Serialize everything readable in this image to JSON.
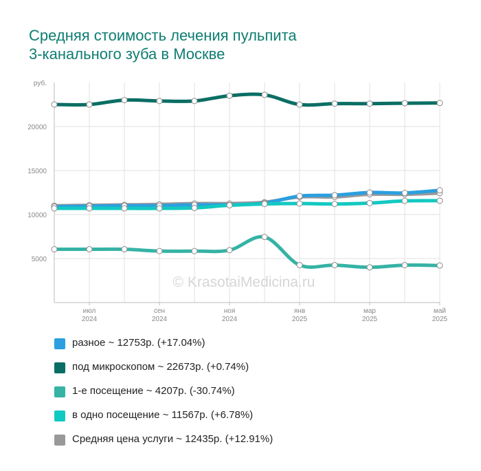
{
  "title": "Средняя стоимость лечения пульпита\n3-канального зуба в Москве",
  "watermark": "© KrasotaiMedicina.ru",
  "chart_data": {
    "type": "line",
    "ylabel": "руб.",
    "ylim": [
      0,
      25000
    ],
    "yticks": [
      5000,
      10000,
      15000,
      20000
    ],
    "xlim": [
      0,
      11
    ],
    "x_tick_labels": [
      {
        "x": 1,
        "month": "июл",
        "year": "2024"
      },
      {
        "x": 3,
        "month": "сен",
        "year": "2024"
      },
      {
        "x": 5,
        "month": "ноя",
        "year": "2024"
      },
      {
        "x": 7,
        "month": "янв",
        "year": "2025"
      },
      {
        "x": 9,
        "month": "мар",
        "year": "2025"
      },
      {
        "x": 11,
        "month": "май",
        "year": "2025"
      }
    ],
    "grid_x": [
      1,
      2,
      3,
      4,
      5,
      6,
      7,
      8,
      9,
      10,
      11
    ],
    "x": [
      0,
      1,
      2,
      3,
      4,
      5,
      6,
      7,
      8,
      9,
      10,
      11
    ],
    "series": [
      {
        "name": "Средняя цена услуги",
        "color": "#999999",
        "values": [
          11000,
          11050,
          11100,
          11150,
          11250,
          11250,
          11400,
          12000,
          12000,
          12300,
          12300,
          12435
        ]
      },
      {
        "name": "разное",
        "color": "#2b9fe0",
        "values": [
          10900,
          10950,
          11000,
          11000,
          11100,
          11100,
          11300,
          12100,
          12200,
          12500,
          12450,
          12753
        ]
      },
      {
        "name": "в одно посещение",
        "color": "#12c9c1",
        "values": [
          10700,
          10700,
          10700,
          10700,
          10750,
          11050,
          11200,
          11250,
          11200,
          11300,
          11550,
          11567
        ]
      },
      {
        "name": "1-е посещение",
        "color": "#35b3a5",
        "values": [
          6050,
          6050,
          6050,
          5850,
          5850,
          5950,
          7450,
          4250,
          4250,
          4000,
          4250,
          4207
        ]
      },
      {
        "name": "под микроскопом",
        "color": "#0b6e64",
        "values": [
          22500,
          22500,
          23000,
          22900,
          22900,
          23500,
          23600,
          22500,
          22600,
          22600,
          22650,
          22673
        ]
      }
    ]
  },
  "legend": [
    {
      "label": "разное ~ 12753р. (+17.04%)",
      "color": "#2b9fe0"
    },
    {
      "label": "под микроскопом ~ 22673р. (+0.74%)",
      "color": "#0b6e64"
    },
    {
      "label": "1-е посещение ~ 4207р. (-30.74%)",
      "color": "#35b3a5"
    },
    {
      "label": "в одно посещение ~ 11567р. (+6.78%)",
      "color": "#12c9c1"
    },
    {
      "label": "Средняя цена услуги ~ 12435р. (+12.91%)",
      "color": "#999999"
    }
  ]
}
